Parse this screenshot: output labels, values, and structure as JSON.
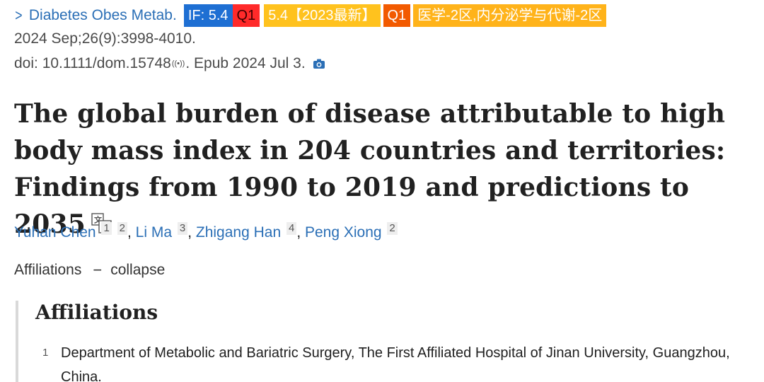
{
  "journal": {
    "name": "Diabetes Obes Metab.",
    "badges": {
      "impact_factor": "IF: 5.4",
      "quartile": "Q1",
      "year_label": "5.4【2023最新】",
      "quartile2": "Q1",
      "zone": "医学-2区,内分泌学与代谢-2区"
    },
    "citation": "2024 Sep;26(9):3998-4010.",
    "doi_prefix": "doi: 10.1111/dom.15748",
    "epub": ". Epub 2024 Jul 3."
  },
  "title": "The global burden of disease attributable to high body mass index in 204 countries and territories: Findings from 1990 to 2019 and predictions to 2035",
  "authors": [
    {
      "name": "Yuhan Chen",
      "affs": [
        "1",
        "2"
      ]
    },
    {
      "name": "Li Ma",
      "affs": [
        "3"
      ]
    },
    {
      "name": "Zhigang Han",
      "affs": [
        "4"
      ]
    },
    {
      "name": "Peng Xiong",
      "affs": [
        "2"
      ]
    }
  ],
  "affiliations_toggle": {
    "label": "Affiliations",
    "action": "collapse"
  },
  "affiliations_panel": {
    "heading": "Affiliations",
    "items": [
      {
        "num": "1",
        "text": "Department of Metabolic and Bariatric Surgery, The First Affiliated Hospital of Jinan University, Guangzhou, China."
      }
    ]
  },
  "colors": {
    "link": "#2b6fb6",
    "if_badge": "#1e6fd3",
    "q1_badge": "#ff2a2a",
    "year_badge": "#ffc21e",
    "q1_badge_2": "#f25a00",
    "zone_badge": "#ffb31a"
  }
}
